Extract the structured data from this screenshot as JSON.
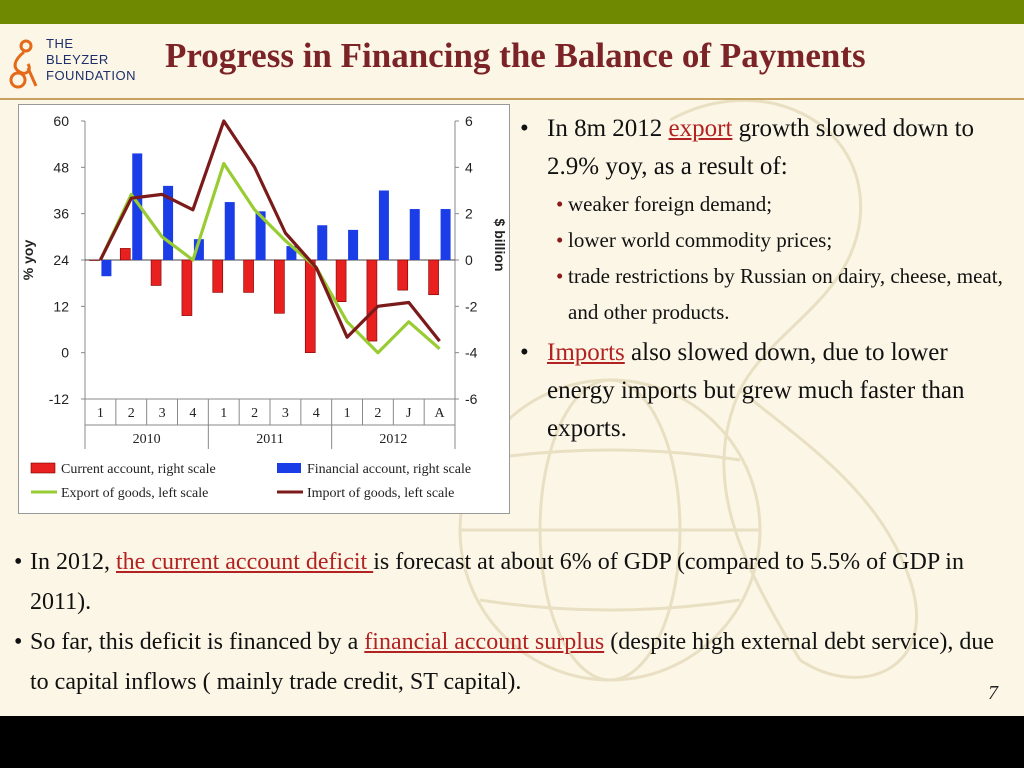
{
  "slide": {
    "title": "Progress in Financing the Balance of Payments",
    "logo": {
      "line1": "THE",
      "line2": "BLEYZER",
      "line3": "FOUNDATION"
    },
    "page_number": "7",
    "colors": {
      "title": "#7b2326",
      "top_bar": "#6f8a00",
      "link": "#b22222",
      "background": "#fbf6e6"
    }
  },
  "right_bullets": {
    "b1_pre": "In 8m 2012  ",
    "b1_link": "export",
    "b1_post": " growth slowed down to 2.9% yoy, as a result of:",
    "sub": [
      "weaker foreign demand;",
      "lower world commodity prices;",
      "trade restrictions by Russian on dairy, cheese, meat, and other products."
    ],
    "b2_link": "Imports",
    "b2_post": " also slowed down, due to lower energy imports but grew much faster than exports."
  },
  "bottom_bullets": {
    "b1_pre": "In 2012, ",
    "b1_link": "the current account deficit ",
    "b1_post": "is forecast at about 6% of GDP (compared to 5.5% of GDP in 2011).",
    "b2_pre": "So far, this deficit is financed by a ",
    "b2_link": "financial account surplus",
    "b2_post": " (despite high external debt service), due to capital inflows ( mainly trade credit, ST capital)."
  },
  "chart_data": {
    "type": "bar",
    "categories": [
      "1",
      "2",
      "3",
      "4",
      "1",
      "2",
      "3",
      "4",
      "1",
      "2",
      "J",
      "A"
    ],
    "category_groups": [
      {
        "label": "2010",
        "count": 4
      },
      {
        "label": "2011",
        "count": 4
      },
      {
        "label": "2012",
        "count": 4
      }
    ],
    "left_axis": {
      "label": "% yoy",
      "ylim": [
        -12,
        60
      ],
      "ticks": [
        60,
        48,
        36,
        24,
        12,
        0,
        -12
      ]
    },
    "right_axis": {
      "label": "$ billion",
      "ylim": [
        -6,
        6
      ],
      "ticks": [
        6,
        4,
        2,
        0,
        -2,
        -4,
        -6
      ]
    },
    "series": [
      {
        "name": "Current account, right scale",
        "type": "bar",
        "axis": "right",
        "color": "#e8201f",
        "values": [
          0,
          0.5,
          -1.1,
          -2.4,
          -1.4,
          -1.4,
          -2.3,
          -4.0,
          -1.8,
          -3.5,
          -1.3,
          -1.5
        ]
      },
      {
        "name": "Financial account, right scale",
        "type": "bar",
        "axis": "right",
        "color": "#1a3de8",
        "values": [
          -0.7,
          4.6,
          3.2,
          0.9,
          2.5,
          2.1,
          0.6,
          1.5,
          1.3,
          3.0,
          2.2,
          2.2
        ]
      },
      {
        "name": "Export of goods, left scale",
        "type": "line",
        "axis": "left",
        "color": "#99cc33",
        "values": [
          24,
          41,
          30,
          24,
          49,
          37,
          29,
          22,
          8,
          0,
          8,
          1
        ]
      },
      {
        "name": "Import of goods, left scale",
        "type": "line",
        "axis": "left",
        "color": "#7b1a1a",
        "values": [
          24,
          40,
          41,
          37,
          60,
          48,
          31,
          22,
          4,
          12,
          13,
          3
        ]
      }
    ],
    "legend": "bottom",
    "grid": false
  }
}
